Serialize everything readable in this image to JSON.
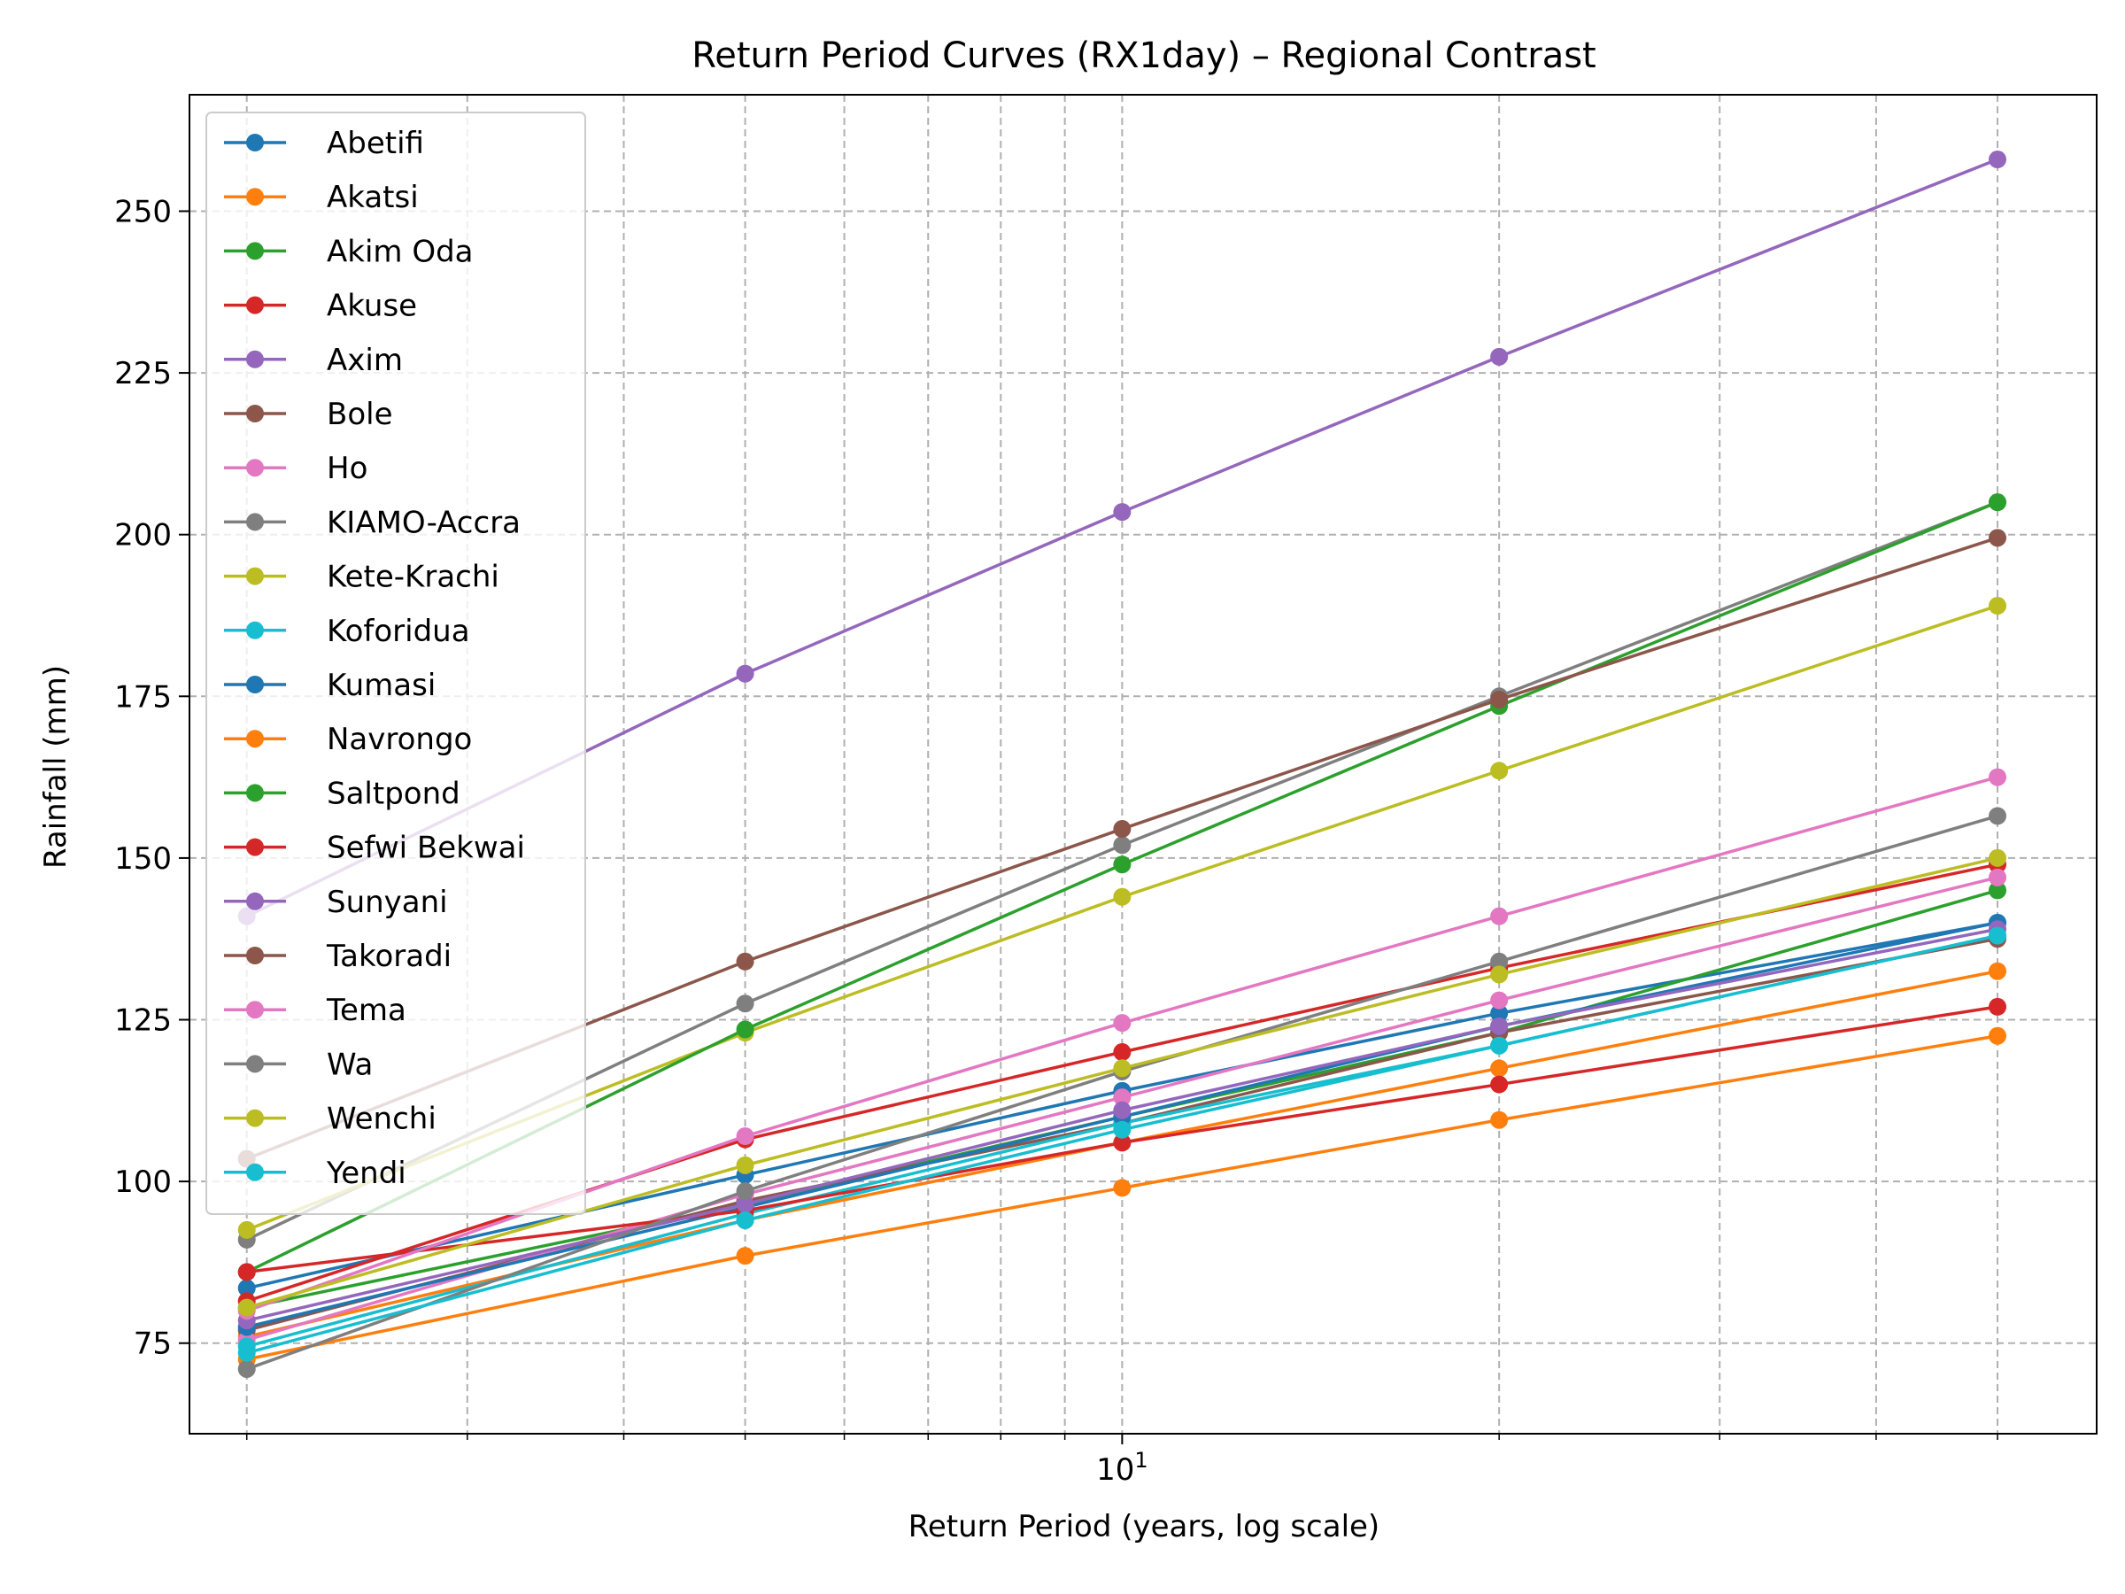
{
  "chart_data": {
    "type": "line",
    "title": "Return Period Curves (RX1day) – Regional Contrast",
    "xlabel": "Return Period (years, log scale)",
    "ylabel": "Rainfall (mm)",
    "x_scale": "log",
    "x": [
      2,
      5,
      10,
      20,
      50
    ],
    "xlim": [
      1.8,
      60
    ],
    "ylim": [
      61,
      268
    ],
    "x_tick_labels": [
      {
        "value": 10,
        "base": "10",
        "exp": "1"
      }
    ],
    "y_ticks": [
      75,
      100,
      125,
      150,
      175,
      200,
      225,
      250
    ],
    "y_tick_labels": [
      "75",
      "100",
      "125",
      "150",
      "175",
      "200",
      "225",
      "250"
    ],
    "grid": true,
    "legend_position": "upper-left",
    "series": [
      {
        "name": "Abetifi",
        "color": "#1f77b4",
        "values": [
          83.5,
          101,
          114,
          126,
          140
        ]
      },
      {
        "name": "Akatsi",
        "color": "#ff7f0e",
        "values": [
          76,
          94,
          106,
          117.5,
          132.5
        ]
      },
      {
        "name": "Akim Oda",
        "color": "#2ca02c",
        "values": [
          80.5,
          96.5,
          110,
          123,
          145
        ]
      },
      {
        "name": "Akuse",
        "color": "#d62728",
        "values": [
          81.5,
          106.5,
          120,
          133,
          149
        ]
      },
      {
        "name": "Axim",
        "color": "#9467bd",
        "values": [
          141,
          178.5,
          203.5,
          227.5,
          258
        ]
      },
      {
        "name": "Bole",
        "color": "#8c564b",
        "values": [
          77,
          97,
          109,
          123,
          137.5
        ]
      },
      {
        "name": "Ho",
        "color": "#e377c2",
        "values": [
          75.5,
          98,
          113,
          128,
          147
        ]
      },
      {
        "name": "KIAMO-Accra",
        "color": "#7f7f7f",
        "values": [
          91,
          127.5,
          152,
          175,
          205
        ]
      },
      {
        "name": "Kete-Krachi",
        "color": "#bcbd22",
        "values": [
          92.5,
          123,
          144,
          163.5,
          189
        ]
      },
      {
        "name": "Koforidua",
        "color": "#17becf",
        "values": [
          74.5,
          95,
          109,
          121,
          138
        ]
      },
      {
        "name": "Kumasi",
        "color": "#1f77b4",
        "values": [
          77.5,
          96,
          110,
          124,
          140
        ]
      },
      {
        "name": "Navrongo",
        "color": "#ff7f0e",
        "values": [
          72.5,
          88.5,
          99,
          109.5,
          122.5
        ]
      },
      {
        "name": "Saltpond",
        "color": "#2ca02c",
        "values": [
          86,
          123.5,
          149,
          173.5,
          205
        ]
      },
      {
        "name": "Sefwi Bekwai",
        "color": "#d62728",
        "values": [
          86,
          95.5,
          106,
          115,
          127
        ]
      },
      {
        "name": "Sunyani",
        "color": "#9467bd",
        "values": [
          78.5,
          96.5,
          111,
          124,
          139
        ]
      },
      {
        "name": "Takoradi",
        "color": "#8c564b",
        "values": [
          103.5,
          134,
          154.5,
          174.5,
          199.5
        ]
      },
      {
        "name": "Tema",
        "color": "#e377c2",
        "values": [
          80,
          107,
          124.5,
          141,
          162.5
        ]
      },
      {
        "name": "Wa",
        "color": "#7f7f7f",
        "values": [
          71,
          98.5,
          117,
          134,
          156.5
        ]
      },
      {
        "name": "Wenchi",
        "color": "#bcbd22",
        "values": [
          80.5,
          102.5,
          117.5,
          132,
          150
        ]
      },
      {
        "name": "Yendi",
        "color": "#17becf",
        "values": [
          73.5,
          94,
          108,
          121,
          138
        ]
      }
    ]
  }
}
